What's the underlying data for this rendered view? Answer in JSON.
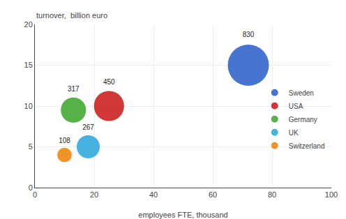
{
  "chart_data": {
    "type": "bubble",
    "xlabel": "employees FTE, thousand",
    "ylabel": "turnover,  billion euro",
    "xlim": [
      0,
      100
    ],
    "ylim": [
      0,
      20
    ],
    "xticks": [
      0,
      20,
      40,
      60,
      80,
      100
    ],
    "yticks": [
      0,
      5,
      10,
      15,
      20
    ],
    "grid": true,
    "legend": "right",
    "data_labels": true,
    "series": [
      {
        "name": "Sweden",
        "color": "#3366cc",
        "x": [
          72
        ],
        "values": [
          15
        ],
        "size": [
          830
        ]
      },
      {
        "name": "USA",
        "color": "#cc2222",
        "x": [
          25
        ],
        "values": [
          10
        ],
        "size": [
          450
        ]
      },
      {
        "name": "Germany",
        "color": "#44aa33",
        "x": [
          13
        ],
        "values": [
          9.5
        ],
        "size": [
          317
        ]
      },
      {
        "name": "UK",
        "color": "#33aadd",
        "x": [
          18
        ],
        "values": [
          5
        ],
        "size": [
          267
        ]
      },
      {
        "name": "Switzerland",
        "color": "#ee8811",
        "x": [
          10
        ],
        "values": [
          4
        ],
        "size": [
          108
        ]
      }
    ]
  }
}
